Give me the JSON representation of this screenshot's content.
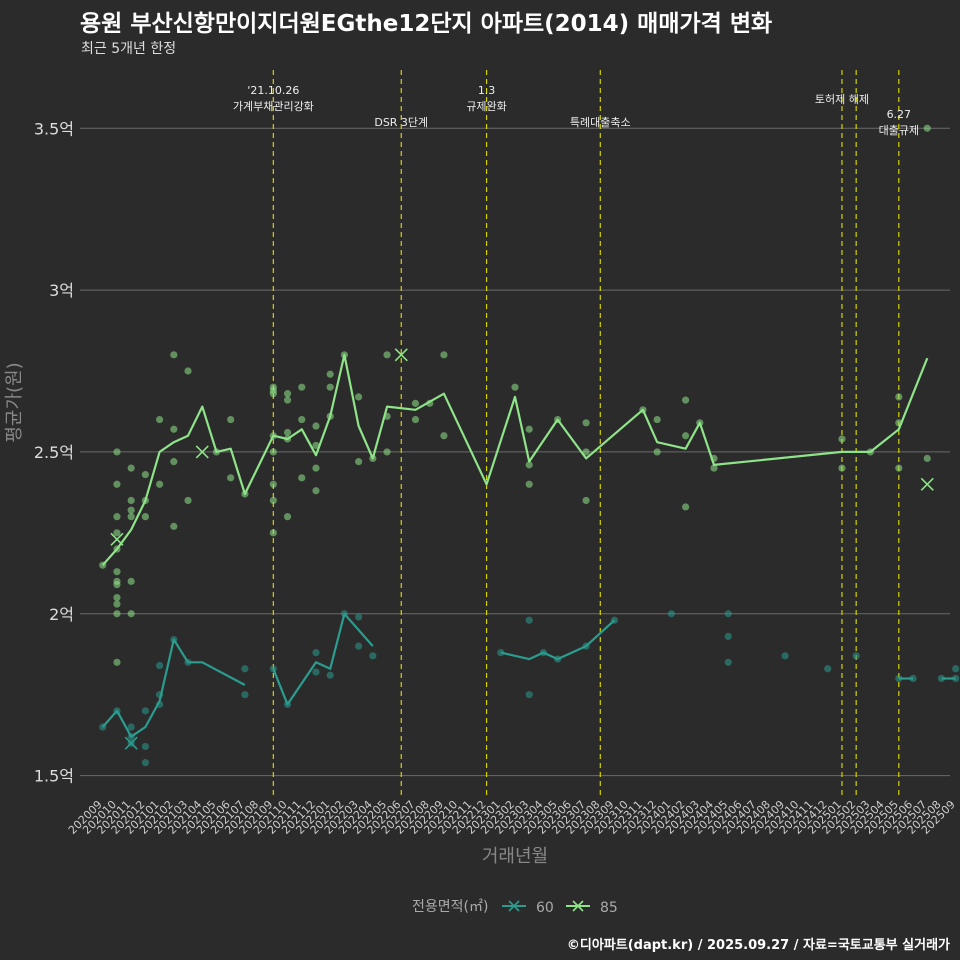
{
  "header": {
    "title": "용원 부산신항만이지더원EGthe12단지 아파트(2014) 매매가격 변화",
    "subtitle": "최근 5개년 한정",
    "caption": "©디아파트(dapt.kr) / 2025.09.27 / 자료=국토교통부 실거래가"
  },
  "chart_data": {
    "type": "line",
    "xlabel": "거래년월",
    "ylabel": "평균가(원)",
    "ylim": [
      1.44,
      3.68
    ],
    "yticks": [
      1.5,
      2,
      2.5,
      3,
      3.5
    ],
    "ytick_labels": [
      "1.5억",
      "2억",
      "2.5억",
      "3억",
      "3.5억"
    ],
    "x_categories": [
      "202009",
      "202010",
      "202011",
      "202012",
      "202101",
      "202102",
      "202103",
      "202104",
      "202105",
      "202106",
      "202107",
      "202108",
      "202109",
      "202110",
      "202111",
      "202112",
      "202201",
      "202202",
      "202203",
      "202204",
      "202205",
      "202206",
      "202207",
      "202208",
      "202209",
      "202210",
      "202211",
      "202212",
      "202301",
      "202302",
      "202303",
      "202304",
      "202305",
      "202306",
      "202307",
      "202308",
      "202309",
      "202310",
      "202311",
      "202312",
      "202401",
      "202402",
      "202403",
      "202404",
      "202405",
      "202406",
      "202407",
      "202408",
      "202409",
      "202410",
      "202411",
      "202412",
      "202501",
      "202502",
      "202503",
      "202504",
      "202505",
      "202506",
      "202507",
      "202508",
      "202509"
    ],
    "legend": {
      "title": "전용면적(㎡)",
      "placement": "bottom",
      "entries": [
        "60",
        "85"
      ]
    },
    "events": [
      {
        "x": 13.0,
        "lines": [
          "'21.10.26",
          "가계부채관리강화"
        ],
        "align": "top"
      },
      {
        "x": 22.0,
        "lines": [
          "DSR 3단계"
        ],
        "align": "mid"
      },
      {
        "x": 28.0,
        "lines": [
          "1.3",
          "규제완화"
        ],
        "align": "top"
      },
      {
        "x": 36.0,
        "lines": [
          "특례대출축소"
        ],
        "align": "mid"
      },
      {
        "x": 53.0,
        "lines": [
          "토허제 해제"
        ],
        "align": "upper"
      },
      {
        "x": 54.0,
        "lines": [],
        "align": "none"
      },
      {
        "x": 57.0,
        "lines": [
          "6.27",
          "대출규제"
        ],
        "align": "low"
      }
    ],
    "series": [
      {
        "name": "60",
        "color": "#2a9d8f",
        "line": [
          [
            [
              1,
              1.65
            ],
            [
              2,
              1.7
            ],
            [
              3,
              1.62
            ],
            [
              4,
              1.65
            ],
            [
              5,
              1.73
            ],
            [
              6,
              1.92
            ],
            [
              7,
              1.85
            ],
            [
              8,
              1.85
            ],
            [
              11,
              1.78
            ]
          ],
          [
            [
              13,
              1.83
            ],
            [
              14,
              1.72
            ],
            [
              16,
              1.85
            ],
            [
              17,
              1.83
            ],
            [
              18,
              2.0
            ],
            [
              20,
              1.9
            ]
          ],
          [
            [
              29,
              1.88
            ],
            [
              31,
              1.86
            ],
            [
              32,
              1.88
            ],
            [
              33,
              1.86
            ],
            [
              35,
              1.9
            ],
            [
              37,
              1.98
            ]
          ],
          [
            [
              57,
              1.8
            ],
            [
              58,
              1.8
            ]
          ],
          [
            [
              60,
              1.8
            ],
            [
              61,
              1.8
            ]
          ]
        ],
        "points": [
          [
            1,
            1.65
          ],
          [
            2,
            1.7
          ],
          [
            3,
            1.6
          ],
          [
            3,
            1.65
          ],
          [
            3,
            1.62
          ],
          [
            4,
            1.59
          ],
          [
            4,
            1.54
          ],
          [
            4,
            1.7
          ],
          [
            5,
            1.72
          ],
          [
            5,
            1.75
          ],
          [
            5,
            1.84
          ],
          [
            6,
            1.92
          ],
          [
            7,
            1.85
          ],
          [
            11,
            1.75
          ],
          [
            11,
            1.83
          ],
          [
            13,
            1.83
          ],
          [
            14,
            1.72
          ],
          [
            16,
            1.88
          ],
          [
            16,
            1.82
          ],
          [
            17,
            1.81
          ],
          [
            18,
            2.0
          ],
          [
            19,
            1.99
          ],
          [
            19,
            1.9
          ],
          [
            20,
            1.87
          ],
          [
            29,
            1.88
          ],
          [
            31,
            1.75
          ],
          [
            31,
            1.98
          ],
          [
            32,
            1.88
          ],
          [
            33,
            1.86
          ],
          [
            35,
            1.9
          ],
          [
            37,
            1.98
          ],
          [
            41,
            2.0
          ],
          [
            45,
            2.0
          ],
          [
            45,
            1.93
          ],
          [
            45,
            1.85
          ],
          [
            49,
            1.87
          ],
          [
            52,
            1.83
          ],
          [
            54,
            1.87
          ],
          [
            57,
            1.8
          ],
          [
            58,
            1.8
          ],
          [
            60,
            1.8
          ],
          [
            61,
            1.8
          ],
          [
            61,
            1.83
          ]
        ],
        "x_marks": [
          [
            3,
            1.6
          ]
        ]
      },
      {
        "name": "85",
        "color": "#8fe388",
        "line": [
          [
            [
              1,
              2.15
            ],
            [
              2,
              2.2
            ],
            [
              3,
              2.26
            ],
            [
              4,
              2.35
            ],
            [
              5,
              2.5
            ],
            [
              6,
              2.53
            ],
            [
              7,
              2.55
            ],
            [
              8,
              2.64
            ],
            [
              9,
              2.5
            ],
            [
              10,
              2.51
            ],
            [
              11,
              2.37
            ],
            [
              13,
              2.55
            ],
            [
              14,
              2.54
            ],
            [
              15,
              2.57
            ],
            [
              16,
              2.49
            ],
            [
              17,
              2.61
            ],
            [
              18,
              2.8
            ],
            [
              19,
              2.58
            ],
            [
              20,
              2.48
            ],
            [
              21,
              2.64
            ],
            [
              23,
              2.63
            ],
            [
              25,
              2.68
            ],
            [
              28,
              2.4
            ],
            [
              30,
              2.67
            ],
            [
              31,
              2.47
            ],
            [
              33,
              2.6
            ],
            [
              35,
              2.48
            ],
            [
              39,
              2.63
            ],
            [
              40,
              2.53
            ],
            [
              42,
              2.51
            ],
            [
              43,
              2.59
            ],
            [
              44,
              2.46
            ],
            [
              53,
              2.5
            ],
            [
              55,
              2.5
            ],
            [
              57,
              2.57
            ],
            [
              59,
              2.79
            ]
          ]
        ],
        "points": [
          [
            1,
            2.15
          ],
          [
            2,
            2.5
          ],
          [
            2,
            2.4
          ],
          [
            2,
            2.3
          ],
          [
            2,
            2.25
          ],
          [
            2,
            2.2
          ],
          [
            2,
            2.13
          ],
          [
            2,
            2.1
          ],
          [
            2,
            2.09
          ],
          [
            2,
            2.05
          ],
          [
            2,
            2.03
          ],
          [
            2,
            2.0
          ],
          [
            2,
            1.85
          ],
          [
            3,
            2.45
          ],
          [
            3,
            2.35
          ],
          [
            3,
            2.32
          ],
          [
            3,
            2.3
          ],
          [
            3,
            2.1
          ],
          [
            3,
            2.0
          ],
          [
            4,
            2.43
          ],
          [
            4,
            2.35
          ],
          [
            4,
            2.3
          ],
          [
            5,
            2.6
          ],
          [
            5,
            2.4
          ],
          [
            6,
            2.8
          ],
          [
            6,
            2.57
          ],
          [
            6,
            2.47
          ],
          [
            6,
            2.27
          ],
          [
            7,
            2.75
          ],
          [
            7,
            2.35
          ],
          [
            9,
            2.5
          ],
          [
            10,
            2.6
          ],
          [
            10,
            2.42
          ],
          [
            11,
            2.37
          ],
          [
            13,
            2.7
          ],
          [
            13,
            2.69
          ],
          [
            13,
            2.68
          ],
          [
            13,
            2.55
          ],
          [
            13,
            2.5
          ],
          [
            13,
            2.4
          ],
          [
            13,
            2.35
          ],
          [
            13,
            2.25
          ],
          [
            14,
            2.68
          ],
          [
            14,
            2.66
          ],
          [
            14,
            2.56
          ],
          [
            14,
            2.54
          ],
          [
            14,
            2.3
          ],
          [
            15,
            2.7
          ],
          [
            15,
            2.6
          ],
          [
            15,
            2.42
          ],
          [
            16,
            2.58
          ],
          [
            16,
            2.52
          ],
          [
            16,
            2.45
          ],
          [
            16,
            2.38
          ],
          [
            17,
            2.74
          ],
          [
            17,
            2.7
          ],
          [
            17,
            2.61
          ],
          [
            18,
            2.8
          ],
          [
            19,
            2.67
          ],
          [
            19,
            2.47
          ],
          [
            20,
            2.48
          ],
          [
            21,
            2.8
          ],
          [
            21,
            2.61
          ],
          [
            21,
            2.5
          ],
          [
            23,
            2.65
          ],
          [
            23,
            2.6
          ],
          [
            24,
            2.65
          ],
          [
            25,
            2.8
          ],
          [
            25,
            2.55
          ],
          [
            30,
            2.7
          ],
          [
            31,
            2.57
          ],
          [
            31,
            2.46
          ],
          [
            31,
            2.4
          ],
          [
            33,
            2.6
          ],
          [
            35,
            2.59
          ],
          [
            35,
            2.5
          ],
          [
            35,
            2.35
          ],
          [
            39,
            2.63
          ],
          [
            40,
            2.6
          ],
          [
            40,
            2.5
          ],
          [
            42,
            2.66
          ],
          [
            42,
            2.55
          ],
          [
            42,
            2.33
          ],
          [
            43,
            2.59
          ],
          [
            44,
            2.48
          ],
          [
            44,
            2.45
          ],
          [
            53,
            2.54
          ],
          [
            53,
            2.45
          ],
          [
            55,
            2.5
          ],
          [
            57,
            2.67
          ],
          [
            57,
            2.59
          ],
          [
            57,
            2.45
          ],
          [
            59,
            2.48
          ],
          [
            59,
            3.5
          ]
        ],
        "x_marks": [
          [
            2,
            2.23
          ],
          [
            8,
            2.5
          ],
          [
            22,
            2.8
          ],
          [
            59,
            2.4
          ]
        ]
      }
    ]
  }
}
